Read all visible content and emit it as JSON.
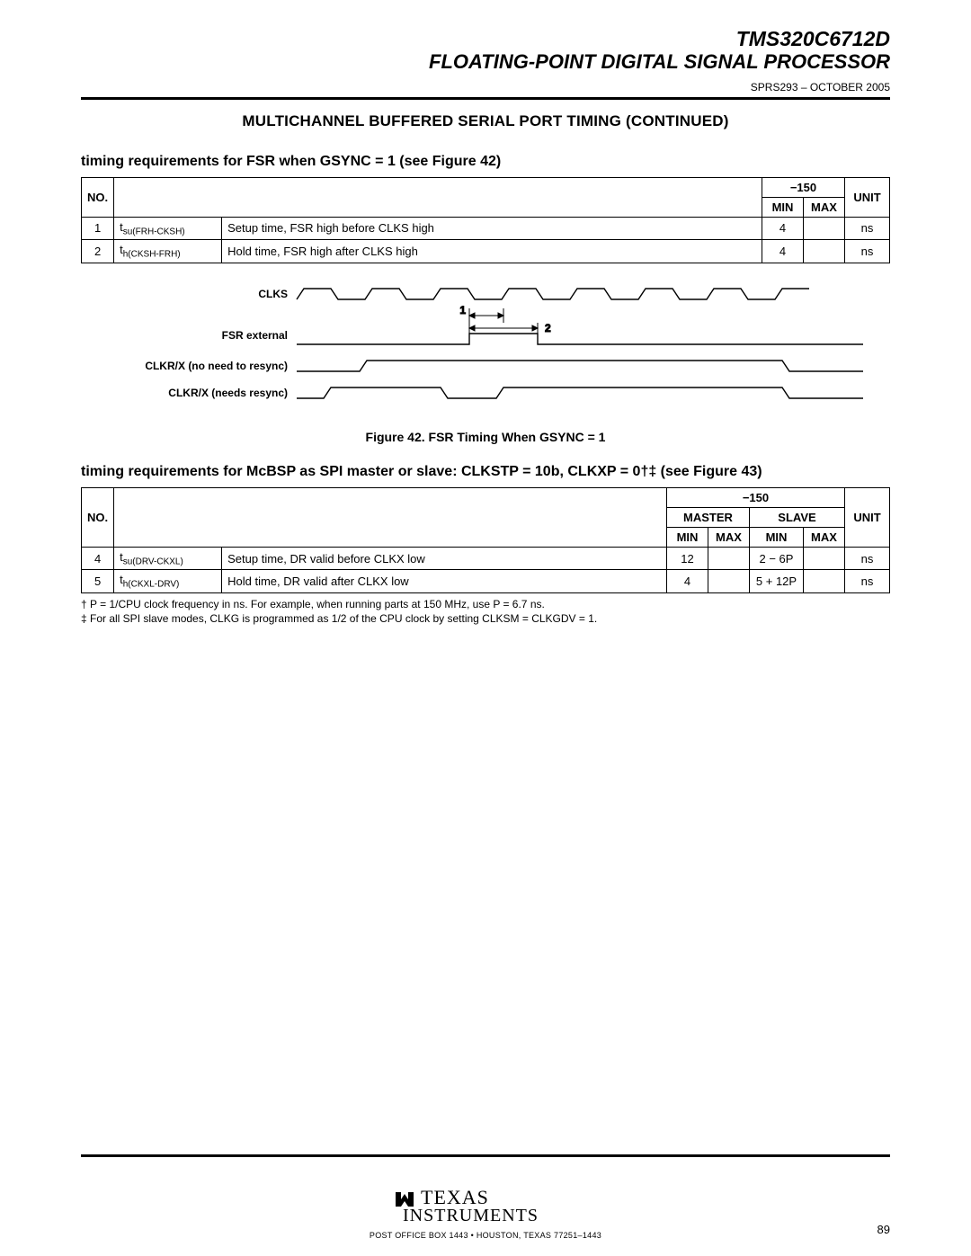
{
  "header": {
    "title": "TMS320C6712D",
    "subtitle": "FLOATING-POINT DIGITAL SIGNAL PROCESSOR",
    "docnum": "SPRS293 – OCTOBER 2005"
  },
  "section_title": "MULTICHANNEL BUFFERED SERIAL PORT TIMING (CONTINUED)",
  "sub1": "timing requirements for FSR when GSYNC = 1 (see Figure 42)",
  "table1": {
    "head_no": "NO.",
    "head_speed": "−150",
    "head_min": "MIN",
    "head_max": "MAX",
    "head_unit": "UNIT",
    "rows": [
      {
        "no": "1",
        "param_html": "t<sub class=\"sub\">su(FRH-CKSH)</sub>",
        "desc": "Setup time, FSR high before CLKS high",
        "min": "4",
        "max": "",
        "unit": "ns"
      },
      {
        "no": "2",
        "param_html": "t<sub class=\"sub\">h(CKSH-FRH)</sub>",
        "desc": "Hold time, FSR high after CLKS high",
        "min": "4",
        "max": "",
        "unit": "ns"
      }
    ]
  },
  "diagram": {
    "labels": {
      "clks": "CLKS",
      "fsr": "FSR external",
      "clkrx1": "CLKR/X (no need to resync)",
      "clkrx2": "CLKR/X (needs resync)",
      "m1": "1",
      "m2": "2"
    }
  },
  "fig_caption": "Figure 42. FSR Timing When GSYNC = 1",
  "sub2": "timing requirements for McBSP as SPI master or slave: CLKSTP = 10b, CLKXP = 0†‡ (see Figure 43)",
  "table2": {
    "head_no": "NO.",
    "head_speed": "−150",
    "head_master": "MASTER",
    "head_slave": "SLAVE",
    "head_min": "MIN",
    "head_max": "MAX",
    "head_unit": "UNIT",
    "rows": [
      {
        "no": "4",
        "param_html": "t<sub class=\"sub\">su(DRV-CKXL)</sub>",
        "desc": "Setup time, DR valid before CLKX low",
        "m_min": "12",
        "m_max": "",
        "s_min": "2 − 6P",
        "s_max": "",
        "unit": "ns"
      },
      {
        "no": "5",
        "param_html": "t<sub class=\"sub\">h(CKXL-DRV)</sub>",
        "desc": "Hold time, DR valid after CLKX low",
        "m_min": "4",
        "m_max": "",
        "s_min": "5 + 12P",
        "s_max": "",
        "unit": "ns"
      }
    ]
  },
  "footnotes": {
    "a": "† P = 1/CPU clock frequency in ns. For example, when running parts at 150 MHz, use P = 6.7 ns.",
    "b": "‡ For all SPI slave modes, CLKG is programmed as 1/2 of the CPU clock by setting CLKSM = CLKGDV = 1."
  },
  "footer": {
    "brand_top": "TEXAS",
    "brand_bottom": "INSTRUMENTS",
    "addr": "POST OFFICE BOX 1443 • HOUSTON, TEXAS 77251–1443",
    "page": "89"
  }
}
